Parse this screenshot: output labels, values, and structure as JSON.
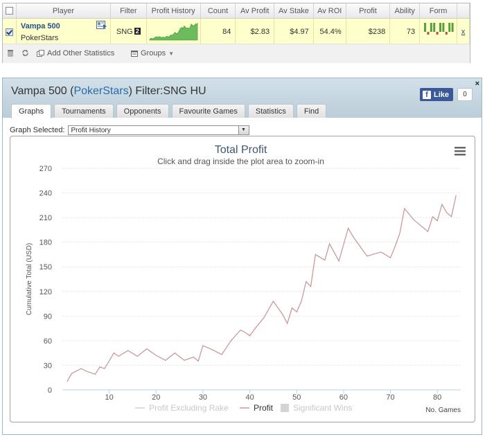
{
  "stats": {
    "headers": {
      "player": "Player",
      "filter": "Filter",
      "profit_history": "Profit History",
      "count": "Count",
      "av_profit": "Av Profit",
      "av_stake": "Av Stake",
      "av_roi": "Av ROI",
      "profit": "Profit",
      "ability": "Ability",
      "form": "Form"
    },
    "row": {
      "player_name": "Vampa 500",
      "site": "PokerStars",
      "filter": "SNG",
      "filter_badge": "2",
      "count": "84",
      "av_profit": "$2.83",
      "av_stake": "$4.97",
      "av_roi": "54.4%",
      "profit": "$238",
      "ability": "73",
      "remove": "x",
      "form_results": [
        1,
        -1,
        1,
        1,
        -1,
        1,
        1,
        -1,
        1,
        1
      ],
      "selected": true
    },
    "toolbar": {
      "add_stats": "Add Other Statistics",
      "groups": "Groups"
    },
    "colors": {
      "spark_fill": "#6dbb5c",
      "spark_line": "#3c8f34",
      "form_win": "#5a9e3c",
      "form_loss": "#c0504d",
      "highlight": "#ffffcc"
    }
  },
  "window": {
    "title_player": "Vampa 500",
    "title_site": "PokerStars",
    "title_filter": "Filter:SNG HU",
    "like_label": "Like",
    "like_count": "0",
    "close": "×",
    "tabs": [
      "Graphs",
      "Tournaments",
      "Opponents",
      "Favourite Games",
      "Statistics",
      "Find"
    ],
    "active_tab": "Graphs",
    "graph_selected_label": "Graph Selected:",
    "graph_selected_value": "Profit History"
  },
  "chart_data": {
    "type": "line",
    "title": "Total Profit",
    "subtitle": "Click and drag inside the plot area to zoom-in",
    "ylabel": "Cumulative Total (USD)",
    "xlabel": "No. Games",
    "ylim": [
      0,
      270
    ],
    "xlim": [
      0,
      85
    ],
    "y_ticks": [
      0,
      30,
      60,
      90,
      120,
      150,
      180,
      210,
      240,
      270
    ],
    "x_ticks": [
      10,
      20,
      30,
      40,
      50,
      60,
      70,
      80
    ],
    "grid": "horizontal",
    "line_color": "#c99a9a",
    "legend_position": "bottom",
    "series": [
      {
        "name": "Profit",
        "x": [
          1,
          2,
          4,
          5,
          7,
          8,
          9,
          11,
          12,
          14,
          16,
          18,
          20,
          22,
          24,
          26,
          28,
          29,
          30,
          32,
          34,
          36,
          38,
          39,
          40,
          41,
          43,
          45,
          47,
          48,
          49,
          50,
          51,
          52,
          53,
          54,
          56,
          57,
          59,
          61,
          62,
          65,
          68,
          70,
          71,
          72,
          73,
          75,
          78,
          79,
          80,
          81,
          82,
          83,
          84
        ],
        "y": [
          10,
          20,
          26,
          23,
          19,
          28,
          26,
          45,
          41,
          48,
          41,
          50,
          42,
          36,
          45,
          36,
          40,
          35,
          54,
          49,
          43,
          60,
          73,
          70,
          66,
          74,
          88,
          108,
          92,
          81,
          100,
          95,
          108,
          132,
          126,
          165,
          158,
          178,
          157,
          197,
          187,
          163,
          168,
          161,
          175,
          191,
          221,
          207,
          193,
          211,
          206,
          226,
          216,
          211,
          237
        ]
      }
    ],
    "legend": [
      "Profit Excluding Rake",
      "Profit",
      "Significant Wins"
    ],
    "legend_active": [
      false,
      true,
      false
    ]
  }
}
